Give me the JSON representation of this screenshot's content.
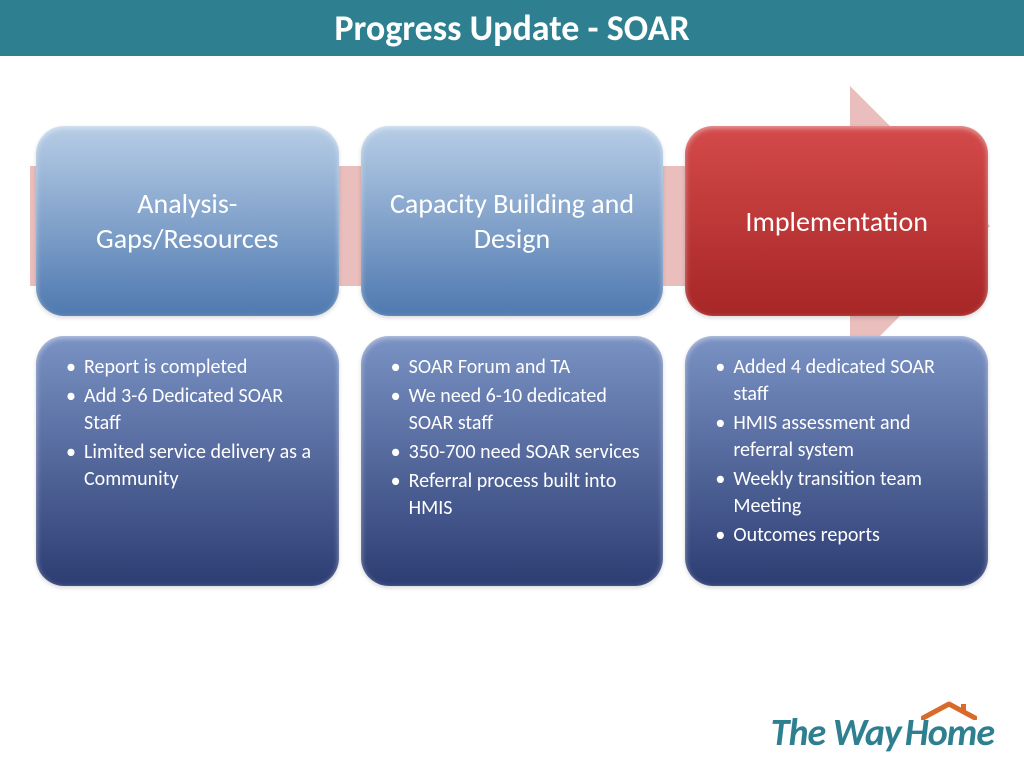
{
  "header": {
    "title": "Progress Update - SOAR"
  },
  "arrow_color": "#e2a8a5",
  "columns": [
    {
      "title": "Analysis- Gaps/Resources",
      "top_gradient_start": "#b7cde6",
      "top_gradient_end": "#4f79b0",
      "top_text_color": "#ffffff",
      "bot_gradient_start": "#7a92c4",
      "bot_gradient_end": "#2d3d73",
      "bullets": [
        "Report is completed",
        "Add 3-6 Dedicated SOAR Staff",
        "Limited service delivery as a Community"
      ]
    },
    {
      "title": "Capacity Building and Design",
      "top_gradient_start": "#b7cde6",
      "top_gradient_end": "#4f79b0",
      "top_text_color": "#ffffff",
      "bot_gradient_start": "#7a92c4",
      "bot_gradient_end": "#2d3d73",
      "bullets": [
        "SOAR Forum and TA",
        "We need   6-10 dedicated SOAR staff",
        "350-700 need SOAR services",
        "Referral process built into HMIS"
      ]
    },
    {
      "title": "Implementation",
      "top_gradient_start": "#d44a4a",
      "top_gradient_end": "#a72626",
      "top_text_color": "#ffffff",
      "bot_gradient_start": "#7a92c4",
      "bot_gradient_end": "#2d3d73",
      "bullets": [
        "Added 4 dedicated SOAR staff",
        "HMIS assessment and referral system",
        "Weekly transition team Meeting",
        "Outcomes reports"
      ]
    }
  ],
  "logo": {
    "part1": "The Way",
    "part2": "Home",
    "text_color": "#2e8091",
    "roof_color": "#d86b2a"
  }
}
